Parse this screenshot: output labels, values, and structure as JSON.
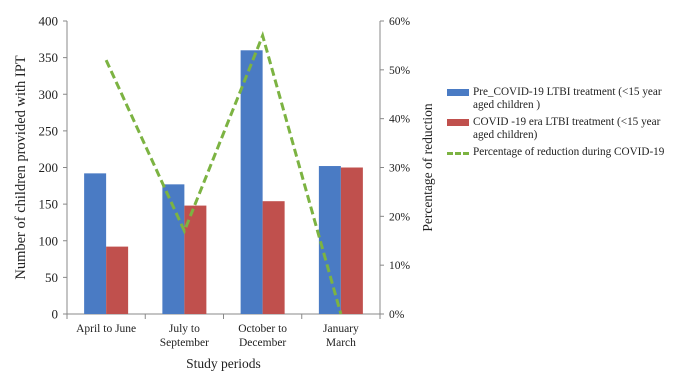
{
  "chart_data": {
    "type": "bar",
    "categories": [
      "April to June",
      "July to September",
      "October to December",
      "January March"
    ],
    "category_lines": [
      [
        "April to June"
      ],
      [
        "July to",
        "September"
      ],
      [
        "October to",
        "December"
      ],
      [
        "January",
        "March"
      ]
    ],
    "series": [
      {
        "name": "Pre_COVID-19  LTBI treatment (<15 year aged  children )",
        "type": "bar",
        "axis": "left",
        "color": "#4a7bc4",
        "values": [
          192,
          177,
          360,
          202
        ]
      },
      {
        "name": "COVID -19 era LTBI treatment (<15 year aged children)",
        "type": "bar",
        "axis": "left",
        "color": "#c0504d",
        "values": [
          92,
          148,
          154,
          200
        ]
      },
      {
        "name": "Percentage of reduction during COVID-19",
        "type": "line",
        "axis": "right",
        "color": "#7cb342",
        "dashed": true,
        "values": [
          52,
          17,
          57,
          0
        ]
      }
    ],
    "xlabel": "Study periods",
    "ylabel": "Number of children provided with IPT",
    "y2label": "Percentage of reduction",
    "ylim": [
      0,
      400
    ],
    "y_ticks": [
      0,
      50,
      100,
      150,
      200,
      250,
      300,
      350,
      400
    ],
    "y2lim": [
      0,
      60
    ],
    "y2_ticks": [
      0,
      10,
      20,
      30,
      40,
      50,
      60
    ],
    "y2_unit": "%",
    "grid": false,
    "legend_position": "right"
  },
  "legend": {
    "items": [
      {
        "label": "Pre_COVID-19  LTBI treatment (<15 year aged  children )",
        "color": "#4a7bc4",
        "kind": "bar"
      },
      {
        "label": "COVID -19 era LTBI treatment (<15 year aged children)",
        "color": "#c0504d",
        "kind": "bar"
      },
      {
        "label": "Percentage of reduction during COVID-19",
        "color": "#7cb342",
        "kind": "line"
      }
    ]
  }
}
